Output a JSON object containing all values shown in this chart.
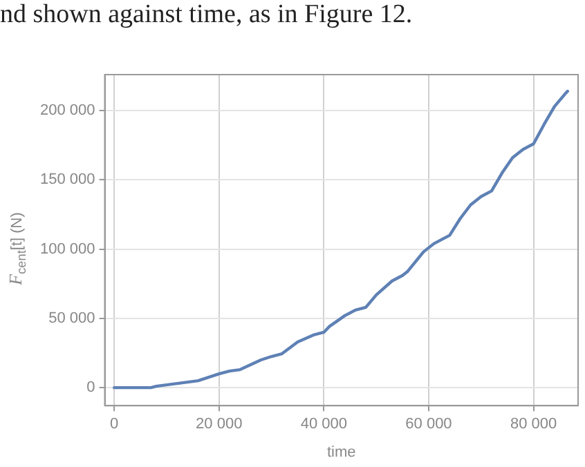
{
  "chart_data": {
    "type": "line",
    "xlabel": "time",
    "ylabel": "F$_{cent}$[t] (N)",
    "annotations": [
      "nd shown against time, as in Figure 12."
    ],
    "x": [
      0,
      4000,
      7000,
      8000,
      12000,
      16000,
      20000,
      22000,
      24000,
      28000,
      30000,
      32000,
      35000,
      38000,
      40000,
      41000,
      44000,
      46000,
      48000,
      50000,
      53000,
      55000,
      56000,
      59000,
      61000,
      63000,
      64000,
      66000,
      68000,
      70000,
      72000,
      74000,
      76000,
      78000,
      80000,
      82000,
      84000,
      86000,
      86500
    ],
    "series": [
      {
        "color": "#5e81b5",
        "values": [
          0,
          0,
          0,
          1000,
          3000,
          5000,
          10000,
          12000,
          13000,
          20000,
          22500,
          24500,
          33000,
          38000,
          40000,
          44000,
          52000,
          56000,
          58000,
          67000,
          77000,
          81000,
          84000,
          98000,
          104000,
          108000,
          110000,
          122000,
          132000,
          138000,
          142000,
          155000,
          166000,
          172000,
          176000,
          190000,
          203000,
          212000,
          214000
        ]
      }
    ],
    "xlim": [
      -1800,
      88500
    ],
    "ylim": [
      -13000,
      226000
    ],
    "xticks": [
      0,
      {
        "value": 20000,
        "label": "20 000"
      },
      {
        "value": 40000,
        "label": "40 000"
      },
      {
        "value": 60000,
        "label": "60 000"
      },
      {
        "value": 80000,
        "label": "80 000"
      }
    ],
    "yticks": [
      0,
      {
        "value": 50000,
        "label": "50 000"
      },
      {
        "value": 100000,
        "label": "100 000"
      },
      {
        "value": 150000,
        "label": "150 000"
      },
      {
        "value": 200000,
        "label": "200 000"
      }
    ],
    "grid": true,
    "marker": "none",
    "line_style": "solid"
  }
}
